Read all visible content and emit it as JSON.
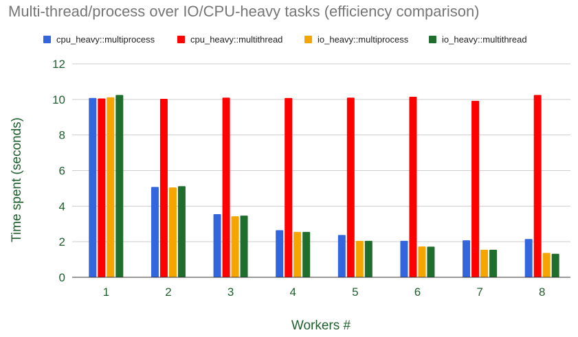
{
  "chart_data": {
    "type": "bar",
    "title": "Multi-thread/process over IO/CPU-heavy tasks (efficiency comparison)",
    "xlabel": "Workers #",
    "ylabel": "Time spent (seconds)",
    "categories": [
      "1",
      "2",
      "3",
      "4",
      "5",
      "6",
      "7",
      "8"
    ],
    "ylim": [
      0,
      12
    ],
    "yticks": [
      0,
      2,
      4,
      6,
      8,
      10,
      12
    ],
    "grid": true,
    "legend_position": "top",
    "series": [
      {
        "name": "cpu_heavy::multiprocess",
        "color": "#3366dd",
        "values": [
          10.08,
          5.08,
          3.55,
          2.65,
          2.38,
          2.05,
          2.08,
          2.15
        ]
      },
      {
        "name": "cpu_heavy::multithread",
        "color": "#ff0000",
        "values": [
          10.05,
          10.03,
          10.1,
          10.08,
          10.1,
          10.15,
          9.92,
          10.25
        ]
      },
      {
        "name": "io_heavy::multiprocess",
        "color": "#f5a500",
        "values": [
          10.12,
          5.05,
          3.43,
          2.55,
          2.05,
          1.73,
          1.55,
          1.37
        ]
      },
      {
        "name": "io_heavy::multithread",
        "color": "#1f6e2e",
        "values": [
          10.25,
          5.12,
          3.47,
          2.55,
          2.05,
          1.72,
          1.55,
          1.32
        ]
      }
    ]
  }
}
